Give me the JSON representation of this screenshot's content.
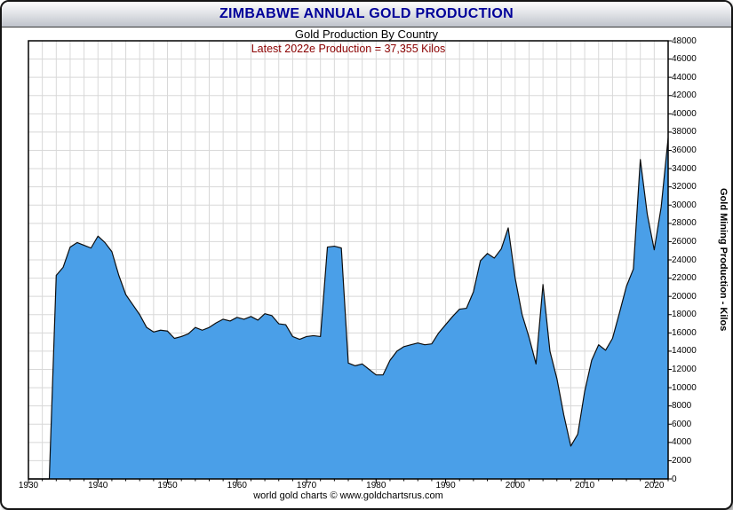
{
  "window": {
    "title": "ZIMBABWE ANNUAL GOLD PRODUCTION"
  },
  "colors": {
    "title_text": "#000099",
    "subtitle_text": "#000000",
    "annotation_text": "#8B0000",
    "area_fill": "#4A9FE8",
    "area_stroke": "#0d0d0d",
    "grid": "#d8d8d8",
    "plot_border": "#000000",
    "tick": "#000000"
  },
  "chart_data": {
    "type": "area",
    "title": "ZIMBABWE ANNUAL GOLD PRODUCTION",
    "subtitle": "Gold Production By Country",
    "annotation": "Latest 2022e Production = 37,355 Kilos",
    "ylabel": "Gold Mining Production - Kilos",
    "footer": "world gold charts © www.goldchartsrus.com",
    "latest_year": "2022e",
    "latest_value_kilos": 37355,
    "xlim": [
      1930,
      2022
    ],
    "ylim": [
      0,
      48000
    ],
    "grid": true,
    "legend": "none",
    "x_ticks": [
      1930,
      1940,
      1950,
      1960,
      1970,
      1980,
      1990,
      2000,
      2010,
      2020
    ],
    "x_minor_step": 2,
    "y_ticks": [
      0,
      2000,
      4000,
      6000,
      8000,
      10000,
      12000,
      14000,
      16000,
      18000,
      20000,
      22000,
      24000,
      26000,
      28000,
      30000,
      32000,
      34000,
      36000,
      38000,
      40000,
      42000,
      44000,
      46000,
      48000
    ],
    "years": [
      1930,
      1931,
      1932,
      1933,
      1934,
      1935,
      1936,
      1937,
      1938,
      1939,
      1940,
      1941,
      1942,
      1943,
      1944,
      1945,
      1946,
      1947,
      1948,
      1949,
      1950,
      1951,
      1952,
      1953,
      1954,
      1955,
      1956,
      1957,
      1958,
      1959,
      1960,
      1961,
      1962,
      1963,
      1964,
      1965,
      1966,
      1967,
      1968,
      1969,
      1970,
      1971,
      1972,
      1973,
      1974,
      1975,
      1976,
      1977,
      1978,
      1979,
      1980,
      1981,
      1982,
      1983,
      1984,
      1985,
      1986,
      1987,
      1988,
      1989,
      1990,
      1991,
      1992,
      1993,
      1994,
      1995,
      1996,
      1997,
      1998,
      1999,
      2000,
      2001,
      2002,
      2003,
      2004,
      2005,
      2006,
      2007,
      2008,
      2009,
      2010,
      2011,
      2012,
      2013,
      2014,
      2015,
      2016,
      2017,
      2018,
      2019,
      2020,
      2021,
      2022
    ],
    "values": [
      0,
      0,
      0,
      0,
      22300,
      23200,
      25400,
      25900,
      25600,
      25300,
      26600,
      25900,
      24900,
      22300,
      20200,
      19100,
      18000,
      16600,
      16100,
      16300,
      16200,
      15400,
      15600,
      15900,
      16600,
      16300,
      16600,
      17100,
      17500,
      17300,
      17700,
      17500,
      17800,
      17400,
      18100,
      17900,
      17000,
      16900,
      15600,
      15300,
      15600,
      15700,
      15600,
      25400,
      25500,
      25300,
      12700,
      12400,
      12600,
      12000,
      11400,
      11400,
      13000,
      14000,
      14500,
      14700,
      14900,
      14700,
      14800,
      16000,
      16900,
      17800,
      18600,
      18700,
      20500,
      23900,
      24700,
      24200,
      25200,
      27500,
      22000,
      18000,
      15500,
      12600,
      21300,
      14000,
      11000,
      7000,
      3600,
      4900,
      9600,
      13000,
      14700,
      14100,
      15400,
      18200,
      21100,
      23000,
      35000,
      29000,
      25100,
      29800,
      37355
    ]
  }
}
